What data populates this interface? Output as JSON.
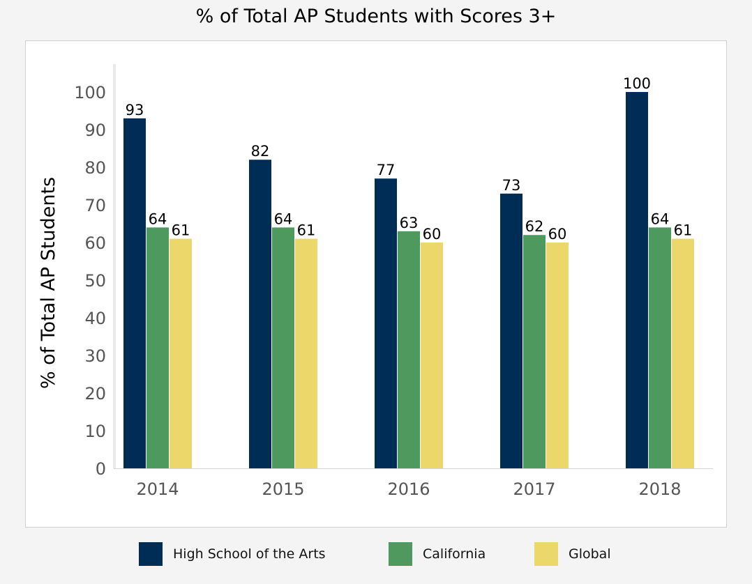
{
  "chart_data": {
    "type": "bar",
    "title": "% of Total AP Students with Scores 3+",
    "xlabel": "",
    "ylabel": "% of Total AP Students",
    "ylim": [
      0,
      100
    ],
    "yticks": [
      0,
      10,
      20,
      30,
      40,
      50,
      60,
      70,
      80,
      90,
      100
    ],
    "categories": [
      "2014",
      "2015",
      "2016",
      "2017",
      "2018"
    ],
    "series": [
      {
        "name": "High School of the Arts",
        "color": "#002d56",
        "values": [
          93,
          82,
          77,
          73,
          100
        ]
      },
      {
        "name": "California",
        "color": "#4e9a5e",
        "values": [
          64,
          64,
          63,
          62,
          64
        ]
      },
      {
        "name": "Global",
        "color": "#ecd86a",
        "values": [
          61,
          61,
          60,
          60,
          61
        ]
      }
    ],
    "grid": false,
    "data_labels": true,
    "legend": "bottom"
  }
}
